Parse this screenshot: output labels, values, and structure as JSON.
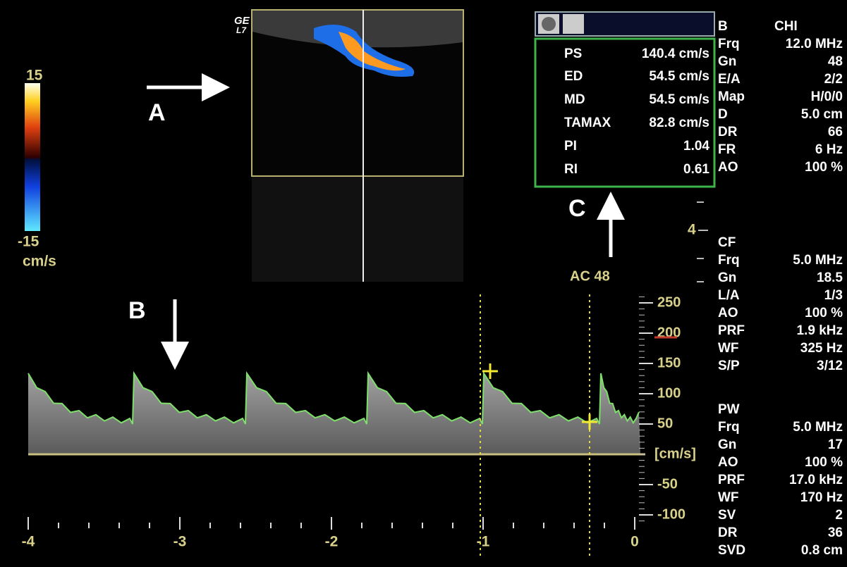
{
  "probe": {
    "brand": "GE",
    "model": "L7"
  },
  "color_scale": {
    "top": "15",
    "bottom": "-15",
    "unit": "cm/s"
  },
  "annotations": {
    "a": "A",
    "b": "B",
    "c": "C"
  },
  "measurements": {
    "rows": [
      {
        "label": "PS",
        "value": "140.4 cm/s"
      },
      {
        "label": "ED",
        "value": "54.5 cm/s"
      },
      {
        "label": "MD",
        "value": "54.5 cm/s"
      },
      {
        "label": "TAMAX",
        "value": "82.8 cm/s"
      },
      {
        "label": "PI",
        "value": "1.04"
      },
      {
        "label": "RI",
        "value": "0.61"
      }
    ]
  },
  "depth_marker": "4",
  "acoustic": "AC 48",
  "b_mode": {
    "title": "B",
    "mode": "CHI",
    "rows": [
      {
        "label": "Frq",
        "value": "12.0 MHz"
      },
      {
        "label": "Gn",
        "value": "48"
      },
      {
        "label": "E/A",
        "value": "2/2"
      },
      {
        "label": "Map",
        "value": "H/0/0"
      },
      {
        "label": "D",
        "value": "5.0 cm"
      },
      {
        "label": "DR",
        "value": "66"
      },
      {
        "label": "FR",
        "value": "6 Hz"
      },
      {
        "label": "AO",
        "value": "100 %"
      }
    ]
  },
  "cf_mode": {
    "title": "CF",
    "rows": [
      {
        "label": "Frq",
        "value": "5.0 MHz"
      },
      {
        "label": "Gn",
        "value": "18.5"
      },
      {
        "label": "L/A",
        "value": "1/3"
      },
      {
        "label": "AO",
        "value": "100 %"
      },
      {
        "label": "PRF",
        "value": "1.9 kHz"
      },
      {
        "label": "WF",
        "value": "325 Hz"
      },
      {
        "label": "S/P",
        "value": "3/12"
      }
    ]
  },
  "pw_mode": {
    "title": "PW",
    "rows": [
      {
        "label": "Frq",
        "value": "5.0 MHz"
      },
      {
        "label": "Gn",
        "value": "17"
      },
      {
        "label": "AO",
        "value": "100 %"
      },
      {
        "label": "PRF",
        "value": "17.0 kHz"
      },
      {
        "label": "WF",
        "value": "170 Hz"
      },
      {
        "label": "SV",
        "value": "2"
      },
      {
        "label": "DR",
        "value": "36"
      },
      {
        "label": "SVD",
        "value": "0.8 cm"
      }
    ]
  },
  "velocity_axis": {
    "unit": "[cm/s]",
    "ticks": [
      250,
      200,
      150,
      100,
      50,
      -50,
      -100
    ]
  },
  "time_axis": {
    "ticks": [
      -4,
      -3,
      -2,
      -1,
      0
    ]
  }
}
